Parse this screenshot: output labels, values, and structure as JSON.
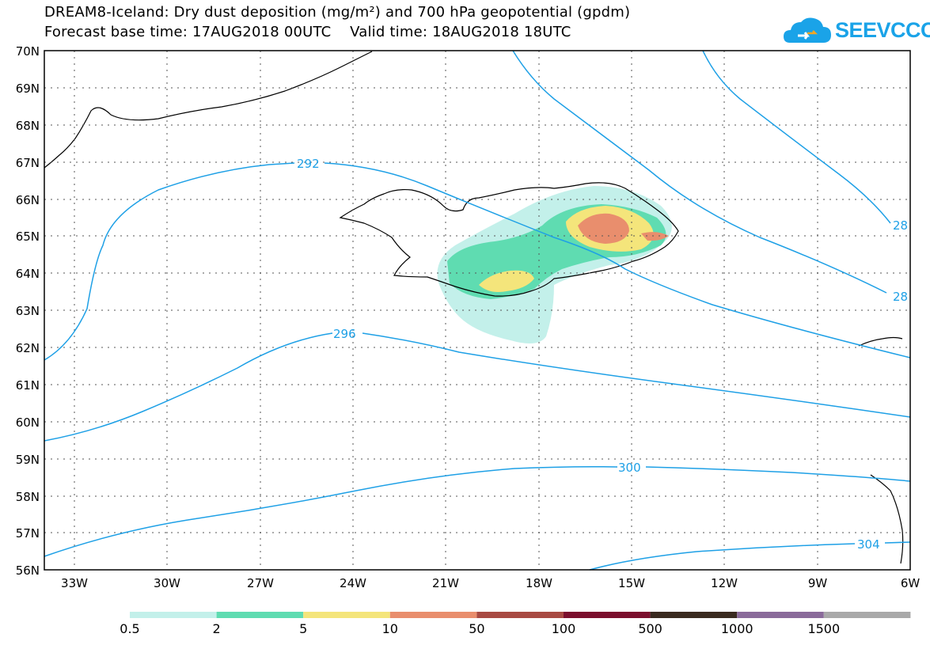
{
  "header": {
    "title_line1": "DREAM8-Iceland: Dry dust deposition (mg/m²) and 700 hPa geopotential (gpdm)",
    "title_line2": "Forecast base time: 17AUG2018 00UTC    Valid time: 18AUG2018 18UTC",
    "logo_text": "SEEVCCC"
  },
  "map": {
    "lon_range": [
      -34,
      -6
    ],
    "lat_range": [
      56,
      70
    ],
    "lat_ticks": [
      "70N",
      "69N",
      "68N",
      "67N",
      "66N",
      "65N",
      "64N",
      "63N",
      "62N",
      "61N",
      "60N",
      "59N",
      "58N",
      "57N",
      "56N"
    ],
    "lon_ticks": [
      "33W",
      "30W",
      "27W",
      "24W",
      "21W",
      "18W",
      "15W",
      "12W",
      "9W",
      "6W"
    ],
    "contour_color": "#1ea0e6",
    "contour_labels": [
      "292",
      "296",
      "300",
      "304",
      "28",
      "28"
    ]
  },
  "legend": {
    "colors": [
      "#c3f0ea",
      "#5fdcb1",
      "#f4e57b",
      "#e98e6d",
      "#a84a43",
      "#7b0f2d",
      "#3a2a1f",
      "#8a6b9a",
      "#a9a9a9"
    ],
    "labels": [
      "0.5",
      "2",
      "5",
      "10",
      "50",
      "100",
      "500",
      "1000",
      "1500"
    ]
  }
}
